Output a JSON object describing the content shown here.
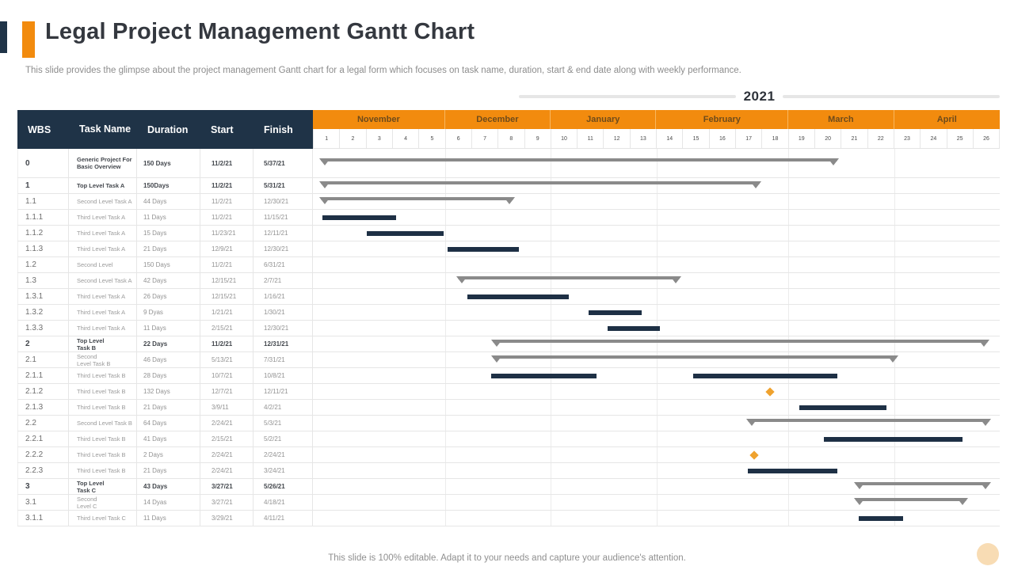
{
  "slide": {
    "title": "Legal Project Management Gantt Chart",
    "subtitle": "This slide provides the glimpse about the project management Gantt chart for a legal form which focuses on task name, duration, start & end date along with weekly performance.",
    "year_label": "2021",
    "footer": "This slide is 100% editable. Adapt it to your needs and capture your audience's attention."
  },
  "colors": {
    "navy": "#1f3347",
    "orange": "#f28b0e",
    "task_bar": "#1e3045",
    "summary_bar": "#8a8a8a",
    "milestone": "#efa22e",
    "corner_circle": "#f8dcb4"
  },
  "chart_data": {
    "type": "gantt",
    "columns": [
      "WBS",
      "Task Name",
      "Duration",
      "Start",
      "Finish"
    ],
    "months": [
      {
        "label": "November",
        "weeks": 5
      },
      {
        "label": "December",
        "weeks": 4
      },
      {
        "label": "January",
        "weeks": 4
      },
      {
        "label": "February",
        "weeks": 5
      },
      {
        "label": "March",
        "weeks": 4
      },
      {
        "label": "April",
        "weeks": 4
      }
    ],
    "week_numbers": [
      1,
      2,
      3,
      4,
      5,
      6,
      7,
      8,
      9,
      10,
      11,
      12,
      13,
      14,
      15,
      16,
      17,
      18,
      19,
      20,
      21,
      22,
      23,
      24,
      25,
      26
    ],
    "total_weeks": 26,
    "rows": [
      {
        "wbs": "0",
        "task": "Generic Project For\nBasic Overview",
        "duration": "150 Days",
        "start": "11/2/21",
        "finish": "5/37/21",
        "bold": true,
        "tall": true,
        "bars": [
          {
            "t": "summary",
            "a": 0.3,
            "b": 19.85
          }
        ]
      },
      {
        "wbs": "1",
        "task": "Top Level Task A",
        "duration": "150Days",
        "start": "11/2/21",
        "finish": "5/31/21",
        "bold": true,
        "bars": [
          {
            "t": "summary",
            "a": 0.3,
            "b": 16.9
          }
        ]
      },
      {
        "wbs": "1.1",
        "task": "Second Level Task A",
        "duration": "44 Days",
        "start": "11/2/21",
        "finish": "12/30/21",
        "bars": [
          {
            "t": "summary",
            "a": 0.3,
            "b": 7.6
          }
        ]
      },
      {
        "wbs": "1.1.1",
        "task": "Third Level Task A",
        "duration": "11 Days",
        "start": "11/2/21",
        "finish": "11/15/21",
        "bars": [
          {
            "t": "task",
            "a": 0.35,
            "b": 3.15
          }
        ]
      },
      {
        "wbs": "1.1.2",
        "task": "Third Level Task A",
        "duration": "15 Days",
        "start": "11/23/21",
        "finish": "12/11/21",
        "bars": [
          {
            "t": "task",
            "a": 2.05,
            "b": 4.95
          }
        ]
      },
      {
        "wbs": "1.1.3",
        "task": "Third Level Task A",
        "duration": "21 Days",
        "start": "12/9/21",
        "finish": "12/30/21",
        "bars": [
          {
            "t": "task",
            "a": 5.1,
            "b": 7.8
          }
        ]
      },
      {
        "wbs": "1.2",
        "task": "Second Level",
        "duration": "150 Days",
        "start": "11/2/21",
        "finish": "6/31/21",
        "bars": []
      },
      {
        "wbs": "1.3",
        "task": "Second Level Task A",
        "duration": "42 Days",
        "start": "12/15/21",
        "finish": "2/7/21",
        "bars": [
          {
            "t": "summary",
            "a": 5.5,
            "b": 13.9
          }
        ]
      },
      {
        "wbs": "1.3.1",
        "task": "Third Level Task A",
        "duration": "26 Days",
        "start": "12/15/21",
        "finish": "1/16/21",
        "bars": [
          {
            "t": "task",
            "a": 5.85,
            "b": 9.7
          }
        ]
      },
      {
        "wbs": "1.3.2",
        "task": "Third Level Task A",
        "duration": "9 Dyas",
        "start": "1/21/21",
        "finish": "1/30/21",
        "bars": [
          {
            "t": "task",
            "a": 10.45,
            "b": 12.45
          }
        ]
      },
      {
        "wbs": "1.3.3",
        "task": "Third Level Task A",
        "duration": "11 Days",
        "start": "2/15/21",
        "finish": "12/30/21",
        "bars": [
          {
            "t": "task",
            "a": 11.15,
            "b": 13.15
          }
        ]
      },
      {
        "wbs": "2",
        "task": "Top Level\nTask B",
        "duration": "22 Days",
        "start": "11/2/21",
        "finish": "12/31/21",
        "bold": true,
        "bars": [
          {
            "t": "summary",
            "a": 6.8,
            "b": 25.55
          }
        ]
      },
      {
        "wbs": "2.1",
        "task": "Second\nLevel Task B",
        "duration": "46 Days",
        "start": "5/13/21",
        "finish": "7/31/21",
        "bars": [
          {
            "t": "summary",
            "a": 6.8,
            "b": 22.1
          }
        ]
      },
      {
        "wbs": "2.1.1",
        "task": "Third Level Task B",
        "duration": "28 Days",
        "start": "10/7/21",
        "finish": "10/8/21",
        "bars": [
          {
            "t": "task",
            "a": 6.75,
            "b": 10.75
          },
          {
            "t": "task",
            "a": 14.4,
            "b": 19.85
          }
        ]
      },
      {
        "wbs": "2.1.2",
        "task": "Third Level Task B",
        "duration": "132 Days",
        "start": "12/7/21",
        "finish": "12/11/21",
        "bars": [
          {
            "t": "milestone",
            "a": 17.3
          }
        ]
      },
      {
        "wbs": "2.1.3",
        "task": "Third Level Task B",
        "duration": "21 Days",
        "start": "3/9/11",
        "finish": "4/2/21",
        "bars": [
          {
            "t": "task",
            "a": 18.4,
            "b": 21.7
          }
        ]
      },
      {
        "wbs": "2.2",
        "task": "Second Level Task B",
        "duration": "64 Days",
        "start": "2/24/21",
        "finish": "5/3/21",
        "bars": [
          {
            "t": "summary",
            "a": 16.45,
            "b": 25.6
          }
        ]
      },
      {
        "wbs": "2.2.1",
        "task": "Third Level Task B",
        "duration": "41 Days",
        "start": "2/15/21",
        "finish": "5/2/21",
        "bars": [
          {
            "t": "task",
            "a": 19.35,
            "b": 24.6
          }
        ]
      },
      {
        "wbs": "2.2.2",
        "task": "Third Level Task B",
        "duration": "2 Days",
        "start": "2/24/21",
        "finish": "2/24/21",
        "bars": [
          {
            "t": "milestone",
            "a": 16.7
          }
        ]
      },
      {
        "wbs": "2.2.3",
        "task": "Third Level Task B",
        "duration": "21 Days",
        "start": "2/24/21",
        "finish": "3/24/21",
        "bars": [
          {
            "t": "task",
            "a": 16.45,
            "b": 19.85
          }
        ]
      },
      {
        "wbs": "3",
        "task": "Top Level\nTask C",
        "duration": "43 Days",
        "start": "3/27/21",
        "finish": "5/26/21",
        "bold": true,
        "bars": [
          {
            "t": "summary",
            "a": 20.55,
            "b": 25.6
          }
        ]
      },
      {
        "wbs": "3.1",
        "task": "Second\nLevel C",
        "duration": "14 Dyas",
        "start": "3/27/21",
        "finish": "4/18/21",
        "bars": [
          {
            "t": "summary",
            "a": 20.55,
            "b": 24.75
          }
        ]
      },
      {
        "wbs": "3.1.1",
        "task": "Third Level Task C",
        "duration": "11 Days",
        "start": "3/29/21",
        "finish": "4/11/21",
        "bars": [
          {
            "t": "task",
            "a": 20.65,
            "b": 22.35
          }
        ]
      }
    ]
  }
}
